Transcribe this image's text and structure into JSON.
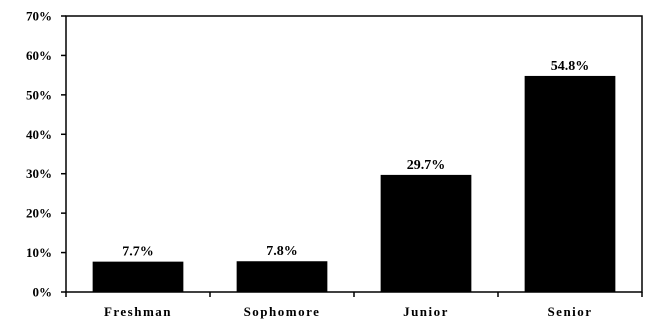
{
  "chart_data": {
    "type": "bar",
    "title": "",
    "xlabel": "",
    "ylabel": "",
    "categories": [
      "Freshman",
      "Sophomore",
      "Junior",
      "Senior"
    ],
    "values": [
      7.7,
      7.8,
      29.7,
      54.8
    ],
    "data_labels": [
      "7.7%",
      "7.8%",
      "29.7%",
      "54.8%"
    ],
    "ylim": [
      0,
      70
    ],
    "yticks": [
      0,
      10,
      20,
      30,
      40,
      50,
      60,
      70
    ],
    "ytick_labels": [
      "0%",
      "10%",
      "20%",
      "30%",
      "40%",
      "50%",
      "60%",
      "70%"
    ],
    "grid": false,
    "legend": "none",
    "bar_color": "#000000"
  }
}
